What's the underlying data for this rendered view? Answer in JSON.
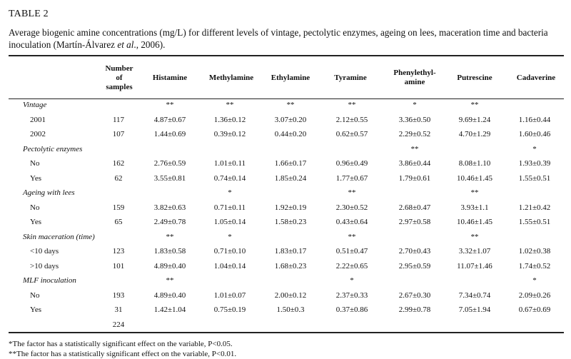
{
  "table_label": "TABLE 2",
  "caption_pre": "Average biogenic amine concentrations (mg/L) for different levels of vintage, pectolytic enzymes, ageing on lees, maceration time and bacteria inoculation (Martín-Álvarez ",
  "caption_italic": "et al",
  "caption_post": "., 2006).",
  "headers": [
    "Number of samples",
    "Histamine",
    "Methylamine",
    "Ethylamine",
    "Tyramine",
    "Phenylethyl-amine",
    "Putrescine",
    "Cadaverine"
  ],
  "rows": [
    {
      "label": "Vintage",
      "group": true,
      "cells": [
        "",
        "**",
        "**",
        "**",
        "**",
        "*",
        "**",
        ""
      ]
    },
    {
      "label": "2001",
      "group": false,
      "cells": [
        "117",
        "4.87±0.67",
        "1.36±0.12",
        "3.07±0.20",
        "2.12±0.55",
        "3.36±0.50",
        "9.69±1.24",
        "1.16±0.44"
      ]
    },
    {
      "label": "2002",
      "group": false,
      "cells": [
        "107",
        "1.44±0.69",
        "0.39±0.12",
        "0.44±0.20",
        "0.62±0.57",
        "2.29±0.52",
        "4.70±1.29",
        "1.60±0.46"
      ]
    },
    {
      "label": "Pectolytic enzymes",
      "group": true,
      "cells": [
        "",
        "",
        "",
        "",
        "",
        "**",
        "",
        "*"
      ]
    },
    {
      "label": "No",
      "group": false,
      "cells": [
        "162",
        "2.76±0.59",
        "1.01±0.11",
        "1.66±0.17",
        "0.96±0.49",
        "3.86±0.44",
        "8.08±1.10",
        "1.93±0.39"
      ]
    },
    {
      "label": "Yes",
      "group": false,
      "cells": [
        "62",
        "3.55±0.81",
        "0.74±0.14",
        "1.85±0.24",
        "1.77±0.67",
        "1.79±0.61",
        "10.46±1.45",
        "1.55±0.51"
      ]
    },
    {
      "label": "Ageing with lees",
      "group": true,
      "cells": [
        "",
        "",
        "*",
        "",
        "**",
        "",
        "**",
        ""
      ]
    },
    {
      "label": "No",
      "group": false,
      "cells": [
        "159",
        "3.82±0.63",
        "0.71±0.11",
        "1.92±0.19",
        "2.30±0.52",
        "2.68±0.47",
        "3.93±1.1",
        "1.21±0.42"
      ]
    },
    {
      "label": "Yes",
      "group": false,
      "cells": [
        "65",
        "2.49±0.78",
        "1.05±0.14",
        "1.58±0.23",
        "0.43±0.64",
        "2.97±0.58",
        "10.46±1.45",
        "1.55±0.51"
      ]
    },
    {
      "label": "Skin maceration (time)",
      "group": true,
      "cells": [
        "",
        "**",
        "*",
        "",
        "**",
        "",
        "**",
        ""
      ]
    },
    {
      "label": "<10 days",
      "group": false,
      "cells": [
        "123",
        "1.83±0.58",
        "0.71±0.10",
        "1.83±0.17",
        "0.51±0.47",
        "2.70±0.43",
        "3.32±1.07",
        "1.02±0.38"
      ]
    },
    {
      "label": ">10 days",
      "group": false,
      "cells": [
        "101",
        "4.89±0.40",
        "1.04±0.14",
        "1.68±0.23",
        "2.22±0.65",
        "2.95±0.59",
        "11.07±1.46",
        "1.74±0.52"
      ]
    },
    {
      "label": "MLF inoculation",
      "group": true,
      "cells": [
        "",
        "**",
        "",
        "",
        "*",
        "",
        "",
        "*"
      ]
    },
    {
      "label": "No",
      "group": false,
      "cells": [
        "193",
        "4.89±0.40",
        "1.01±0.07",
        "2.00±0.12",
        "2.37±0.33",
        "2.67±0.30",
        "7.34±0.74",
        "2.09±0.26"
      ]
    },
    {
      "label": "Yes",
      "group": false,
      "cells": [
        "31",
        "1.42±1.04",
        "0.75±0.19",
        "1.50±0.3",
        "0.37±0.86",
        "2.99±0.78",
        "7.05±1.94",
        "0.67±0.69"
      ]
    },
    {
      "label": "",
      "group": false,
      "cells": [
        "224",
        "",
        "",
        "",
        "",
        "",
        "",
        ""
      ]
    }
  ],
  "footnotes": [
    "*The factor has a statistically significant effect on the variable, P<0.05.",
    "**The factor has a statistically significant effect on the variable, P<0.01."
  ]
}
